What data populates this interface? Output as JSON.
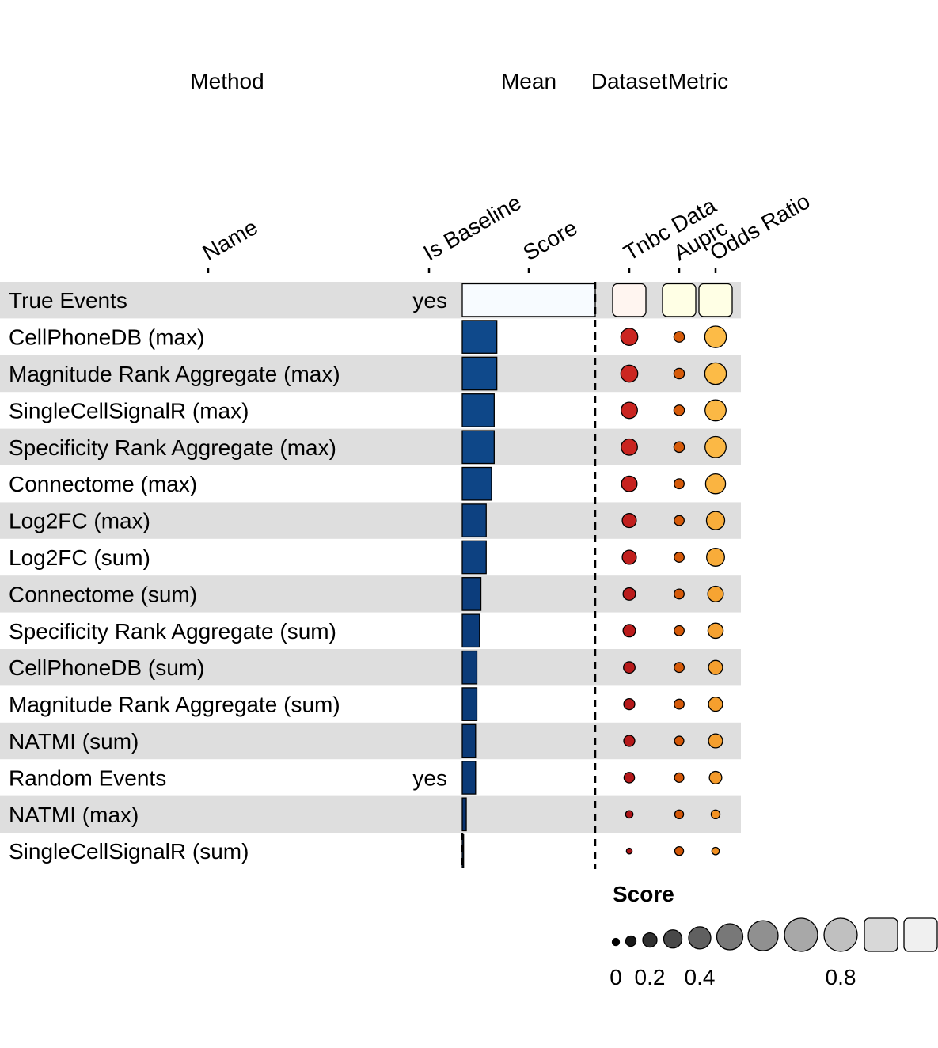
{
  "chart_data": {
    "type": "table",
    "column_groups": [
      "Method",
      "Mean",
      "Dataset",
      "Metric"
    ],
    "columns": {
      "name": "Name",
      "is_baseline": "Is Baseline",
      "score": "Score",
      "dataset": "Tnbc Data",
      "auprc": "Auprc",
      "odds_ratio": "Odds Ratio"
    },
    "rows": [
      {
        "name": "True Events",
        "is_baseline": "yes",
        "score": 1.0,
        "dataset": 1.0,
        "auprc": 1.0,
        "odds_ratio": 1.0
      },
      {
        "name": "CellPhoneDB (max)",
        "is_baseline": "",
        "score": 0.26,
        "dataset": 0.26,
        "auprc": 0.1,
        "odds_ratio": 0.42
      },
      {
        "name": "Magnitude Rank Aggregate (max)",
        "is_baseline": "",
        "score": 0.26,
        "dataset": 0.26,
        "auprc": 0.1,
        "odds_ratio": 0.42
      },
      {
        "name": "SingleCellSignalR (max)",
        "is_baseline": "",
        "score": 0.24,
        "dataset": 0.24,
        "auprc": 0.1,
        "odds_ratio": 0.4
      },
      {
        "name": "Specificity Rank Aggregate (max)",
        "is_baseline": "",
        "score": 0.24,
        "dataset": 0.24,
        "auprc": 0.1,
        "odds_ratio": 0.4
      },
      {
        "name": "Connectome (max)",
        "is_baseline": "",
        "score": 0.22,
        "dataset": 0.22,
        "auprc": 0.09,
        "odds_ratio": 0.36
      },
      {
        "name": "Log2FC (max)",
        "is_baseline": "",
        "score": 0.18,
        "dataset": 0.18,
        "auprc": 0.09,
        "odds_ratio": 0.3
      },
      {
        "name": "Log2FC (sum)",
        "is_baseline": "",
        "score": 0.18,
        "dataset": 0.18,
        "auprc": 0.09,
        "odds_ratio": 0.29
      },
      {
        "name": "Connectome (sum)",
        "is_baseline": "",
        "score": 0.14,
        "dataset": 0.14,
        "auprc": 0.09,
        "odds_ratio": 0.22
      },
      {
        "name": "Specificity Rank Aggregate (sum)",
        "is_baseline": "",
        "score": 0.13,
        "dataset": 0.14,
        "auprc": 0.09,
        "odds_ratio": 0.21
      },
      {
        "name": "CellPhoneDB (sum)",
        "is_baseline": "",
        "score": 0.11,
        "dataset": 0.12,
        "auprc": 0.09,
        "odds_ratio": 0.18
      },
      {
        "name": "Magnitude Rank Aggregate (sum)",
        "is_baseline": "",
        "score": 0.11,
        "dataset": 0.11,
        "auprc": 0.09,
        "odds_ratio": 0.18
      },
      {
        "name": "NATMI (sum)",
        "is_baseline": "",
        "score": 0.1,
        "dataset": 0.11,
        "auprc": 0.08,
        "odds_ratio": 0.18
      },
      {
        "name": "Random Events",
        "is_baseline": "yes",
        "score": 0.1,
        "dataset": 0.1,
        "auprc": 0.08,
        "odds_ratio": 0.14
      },
      {
        "name": "NATMI (max)",
        "is_baseline": "",
        "score": 0.03,
        "dataset": 0.05,
        "auprc": 0.07,
        "odds_ratio": 0.07
      },
      {
        "name": "SingleCellSignalR (sum)",
        "is_baseline": "",
        "score": 0.01,
        "dataset": 0.03,
        "auprc": 0.07,
        "odds_ratio": 0.05
      }
    ],
    "legend": {
      "title": "Score",
      "ticks": [
        "0",
        "0.2",
        "0.4",
        "0.8"
      ],
      "placement": "bottom-right"
    },
    "row_shading": "alternating",
    "colors": {
      "score": [
        "#f7fbff",
        "#1560a8",
        "#08306b"
      ],
      "dataset": [
        "#fff5f0",
        "#ef3b2c",
        "#a50f15"
      ],
      "auprc": [
        "#ffffe5",
        "#fe9929",
        "#cc4c02"
      ],
      "odds_ratio": [
        "#ffffe5",
        "#fec44f",
        "#f08a1c"
      ],
      "row_shade": "#dedede",
      "legend": [
        "#000000",
        "#f0f0f0"
      ]
    }
  }
}
